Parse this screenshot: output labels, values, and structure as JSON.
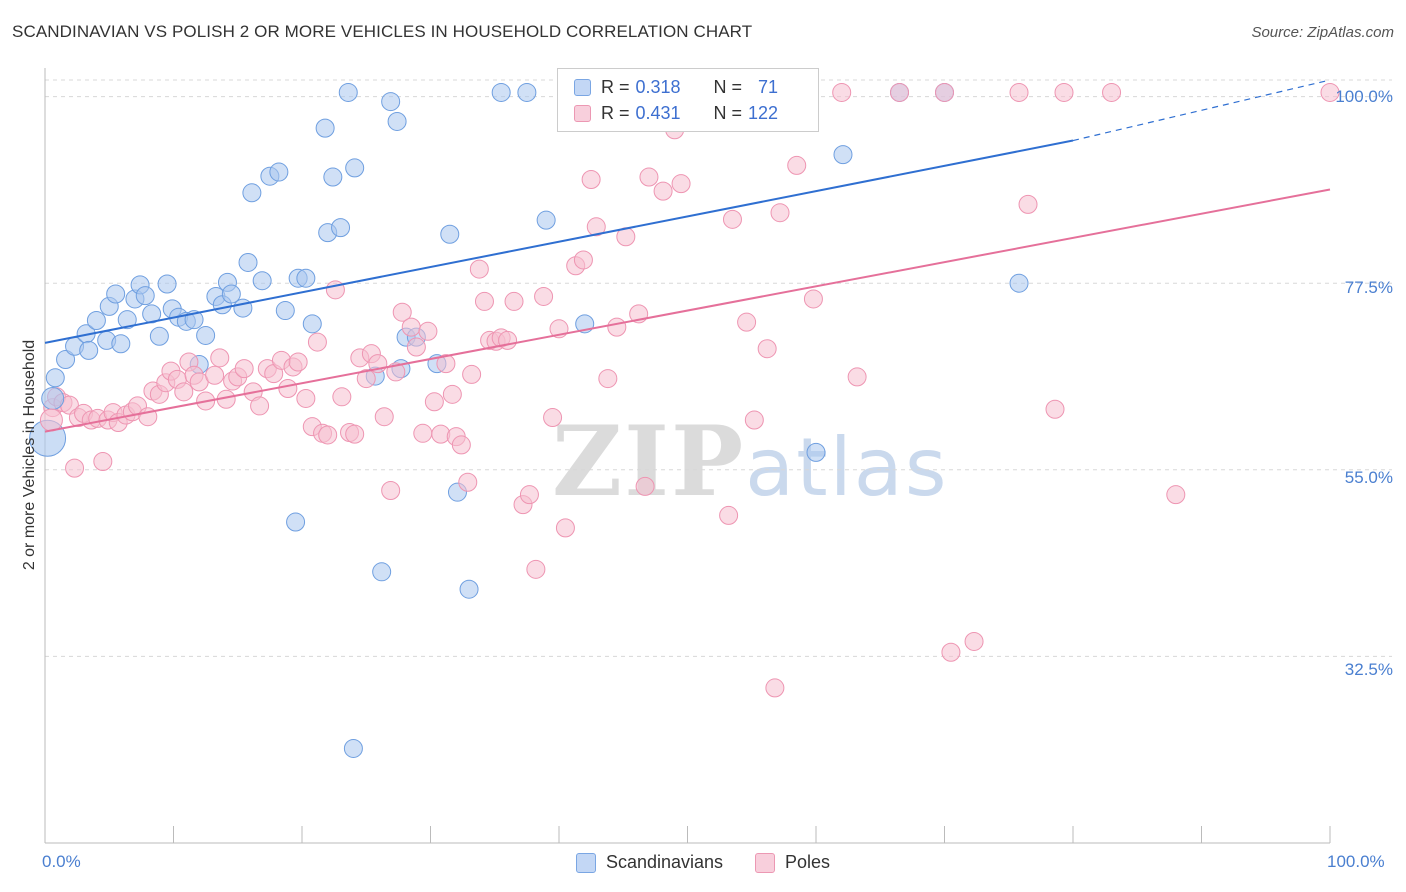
{
  "header": {
    "title": "SCANDINAVIAN VS POLISH 2 OR MORE VEHICLES IN HOUSEHOLD CORRELATION CHART",
    "source": "Source: ZipAtlas.com"
  },
  "watermark": {
    "zip": "ZIP",
    "atlas": "atlas"
  },
  "legend_top": {
    "rows": [
      {
        "r_label": "R = ",
        "r_value": "0.318",
        "n_label": "N = ",
        "n_value": "71"
      },
      {
        "r_label": "R = ",
        "r_value": "0.431",
        "n_label": "N = ",
        "n_value": "122"
      }
    ]
  },
  "legend_bottom": {
    "items": [
      "Scandinavians",
      "Poles"
    ]
  },
  "colors": {
    "blue_fill": "#a9c6ef",
    "blue_stroke": "#6f9fe0",
    "blue_line": "#2f6fd1",
    "pink_fill": "#f6bfd0",
    "pink_stroke": "#ee95b2",
    "pink_line": "#e5709a",
    "tick_text": "#4a7fd0",
    "grid": "#d8d8d8"
  },
  "chart_data": {
    "type": "scatter",
    "title": "SCANDINAVIAN VS POLISH 2 OR MORE VEHICLES IN HOUSEHOLD CORRELATION CHART",
    "xlabel": "",
    "ylabel": "2 or more Vehicles in Household",
    "xlim": [
      0,
      100
    ],
    "ylim": [
      10,
      102
    ],
    "x_tick_labels": [
      "0.0%",
      "100.0%"
    ],
    "y_ticks": [
      32.5,
      55.0,
      77.5,
      100.0
    ],
    "y_tick_labels": [
      "32.5%",
      "55.0%",
      "77.5%",
      "100.0%"
    ],
    "grid": true,
    "legend_position": "top-center",
    "series": [
      {
        "name": "Scandinavians",
        "R": 0.318,
        "N": 71,
        "trend": {
          "x": [
            0,
            80
          ],
          "y": [
            70.3,
            94.7
          ],
          "dashed_to": [
            100,
            102
          ]
        },
        "points": [
          [
            0.8,
            66.1
          ],
          [
            1.6,
            68.3
          ],
          [
            2.3,
            69.9
          ],
          [
            3.2,
            71.4
          ],
          [
            3.4,
            69.4
          ],
          [
            4.0,
            73.0
          ],
          [
            4.8,
            70.6
          ],
          [
            5.0,
            74.7
          ],
          [
            5.5,
            76.2
          ],
          [
            5.9,
            70.2
          ],
          [
            6.4,
            73.1
          ],
          [
            7.0,
            75.6
          ],
          [
            7.4,
            77.3
          ],
          [
            7.8,
            76.0
          ],
          [
            8.3,
            73.8
          ],
          [
            8.9,
            71.1
          ],
          [
            9.5,
            77.4
          ],
          [
            9.9,
            74.4
          ],
          [
            10.4,
            73.4
          ],
          [
            11.0,
            72.9
          ],
          [
            11.6,
            73.1
          ],
          [
            12.0,
            67.7
          ],
          [
            12.5,
            71.2
          ],
          [
            13.3,
            75.9
          ],
          [
            13.8,
            74.9
          ],
          [
            14.2,
            77.6
          ],
          [
            14.5,
            76.2
          ],
          [
            15.4,
            74.5
          ],
          [
            15.8,
            80.0
          ],
          [
            16.1,
            88.4
          ],
          [
            16.9,
            77.8
          ],
          [
            17.5,
            90.4
          ],
          [
            18.2,
            90.9
          ],
          [
            18.7,
            74.2
          ],
          [
            19.5,
            48.7
          ],
          [
            19.7,
            78.1
          ],
          [
            20.3,
            78.1
          ],
          [
            20.8,
            72.6
          ],
          [
            21.8,
            96.2
          ],
          [
            22.0,
            83.6
          ],
          [
            22.4,
            90.3
          ],
          [
            23.0,
            84.2
          ],
          [
            23.6,
            100.5
          ],
          [
            24.1,
            91.4
          ],
          [
            25.7,
            66.3
          ],
          [
            26.2,
            42.7
          ],
          [
            26.9,
            99.4
          ],
          [
            27.4,
            97.0
          ],
          [
            27.7,
            67.2
          ],
          [
            28.1,
            71.0
          ],
          [
            28.9,
            71.0
          ],
          [
            30.5,
            67.8
          ],
          [
            31.5,
            83.4
          ],
          [
            32.1,
            52.3
          ],
          [
            33.0,
            40.6
          ],
          [
            35.5,
            100.5
          ],
          [
            37.5,
            100.5
          ],
          [
            39.0,
            85.1
          ],
          [
            42.0,
            72.6
          ],
          [
            43.0,
            100.5
          ],
          [
            49.3,
            100.5
          ],
          [
            51.5,
            100.5
          ],
          [
            52.0,
            100.5
          ],
          [
            52.8,
            100.5
          ],
          [
            52.8,
            100.5
          ],
          [
            52.8,
            100.5
          ],
          [
            52.8,
            100.5
          ],
          [
            52.8,
            100.5
          ],
          [
            52.8,
            100.5
          ],
          [
            52.8,
            100.5
          ],
          [
            52.8,
            100.5
          ],
          [
            60.0,
            57.1
          ],
          [
            62.1,
            93.0
          ],
          [
            66.5,
            100.5
          ],
          [
            70.0,
            100.5
          ],
          [
            75.8,
            77.5
          ],
          [
            24.0,
            21.4
          ]
        ]
      },
      {
        "name": "Poles",
        "R": 0.431,
        "N": 122,
        "trend": {
          "x": [
            0,
            100
          ],
          "y": [
            59.6,
            88.8
          ]
        },
        "points": [
          [
            0.6,
            62.5
          ],
          [
            0.9,
            63.8
          ],
          [
            1.4,
            63.1
          ],
          [
            1.9,
            62.8
          ],
          [
            2.3,
            55.2
          ],
          [
            2.6,
            61.3
          ],
          [
            3.0,
            61.8
          ],
          [
            3.6,
            61.0
          ],
          [
            4.1,
            61.2
          ],
          [
            4.5,
            56.0
          ],
          [
            4.9,
            61.0
          ],
          [
            5.3,
            61.9
          ],
          [
            5.7,
            60.7
          ],
          [
            6.3,
            61.6
          ],
          [
            6.8,
            62.0
          ],
          [
            7.2,
            62.7
          ],
          [
            8.0,
            61.4
          ],
          [
            8.4,
            64.5
          ],
          [
            8.9,
            64.1
          ],
          [
            9.4,
            65.5
          ],
          [
            9.8,
            66.9
          ],
          [
            10.3,
            65.9
          ],
          [
            10.8,
            64.4
          ],
          [
            11.2,
            68.0
          ],
          [
            11.6,
            66.4
          ],
          [
            12.0,
            65.6
          ],
          [
            12.5,
            63.3
          ],
          [
            13.2,
            66.4
          ],
          [
            13.6,
            68.5
          ],
          [
            14.1,
            63.5
          ],
          [
            14.6,
            65.7
          ],
          [
            15.0,
            66.2
          ],
          [
            15.5,
            67.2
          ],
          [
            16.2,
            64.4
          ],
          [
            16.7,
            62.7
          ],
          [
            17.3,
            67.2
          ],
          [
            17.8,
            66.6
          ],
          [
            18.4,
            68.2
          ],
          [
            18.9,
            64.8
          ],
          [
            19.3,
            67.4
          ],
          [
            19.7,
            68.0
          ],
          [
            20.3,
            63.6
          ],
          [
            20.8,
            60.2
          ],
          [
            21.2,
            70.4
          ],
          [
            21.6,
            59.4
          ],
          [
            22.0,
            59.2
          ],
          [
            22.6,
            76.7
          ],
          [
            23.1,
            63.8
          ],
          [
            23.7,
            59.5
          ],
          [
            24.1,
            59.3
          ],
          [
            24.5,
            68.5
          ],
          [
            25.0,
            66.0
          ],
          [
            25.4,
            69.0
          ],
          [
            25.9,
            67.8
          ],
          [
            26.4,
            61.4
          ],
          [
            26.9,
            52.5
          ],
          [
            27.3,
            66.8
          ],
          [
            27.8,
            74.0
          ],
          [
            28.5,
            72.2
          ],
          [
            28.9,
            69.8
          ],
          [
            29.4,
            59.4
          ],
          [
            29.8,
            71.7
          ],
          [
            30.3,
            63.2
          ],
          [
            30.8,
            59.3
          ],
          [
            31.2,
            67.8
          ],
          [
            31.7,
            64.1
          ],
          [
            32.0,
            59.0
          ],
          [
            32.4,
            58.0
          ],
          [
            32.9,
            53.5
          ],
          [
            33.2,
            66.5
          ],
          [
            33.8,
            79.2
          ],
          [
            34.2,
            75.3
          ],
          [
            34.6,
            70.6
          ],
          [
            35.1,
            70.5
          ],
          [
            35.5,
            70.9
          ],
          [
            36.0,
            70.6
          ],
          [
            36.5,
            75.3
          ],
          [
            37.2,
            50.8
          ],
          [
            37.7,
            52.0
          ],
          [
            38.2,
            43.0
          ],
          [
            38.8,
            75.9
          ],
          [
            39.5,
            61.3
          ],
          [
            40.0,
            72.0
          ],
          [
            40.5,
            48.0
          ],
          [
            41.3,
            79.6
          ],
          [
            41.9,
            80.3
          ],
          [
            42.5,
            90.0
          ],
          [
            42.9,
            84.3
          ],
          [
            43.8,
            66.0
          ],
          [
            44.5,
            72.2
          ],
          [
            45.2,
            83.1
          ],
          [
            46.2,
            73.8
          ],
          [
            46.7,
            53.0
          ],
          [
            47.0,
            90.3
          ],
          [
            48.1,
            88.6
          ],
          [
            48.6,
            100.5
          ],
          [
            49.0,
            96.0
          ],
          [
            49.5,
            89.5
          ],
          [
            50.5,
            100.5
          ],
          [
            50.9,
            100.5
          ],
          [
            51.3,
            100.5
          ],
          [
            51.7,
            100.5
          ],
          [
            53.2,
            49.5
          ],
          [
            53.5,
            85.2
          ],
          [
            54.6,
            72.8
          ],
          [
            55.2,
            61.0
          ],
          [
            55.6,
            100.5
          ],
          [
            56.2,
            69.6
          ],
          [
            56.8,
            28.7
          ],
          [
            57.2,
            86.0
          ],
          [
            58.5,
            91.7
          ],
          [
            59.8,
            75.6
          ],
          [
            62.0,
            100.5
          ],
          [
            63.2,
            66.2
          ],
          [
            66.5,
            100.5
          ],
          [
            70.0,
            100.5
          ],
          [
            70.5,
            33.0
          ],
          [
            72.3,
            34.3
          ],
          [
            75.8,
            100.5
          ],
          [
            76.5,
            87.0
          ],
          [
            78.6,
            62.3
          ],
          [
            79.3,
            100.5
          ],
          [
            83.0,
            100.5
          ],
          [
            88.0,
            52.0
          ],
          [
            100.0,
            100.5
          ]
        ]
      }
    ],
    "large_points": [
      {
        "series": "Scandinavians",
        "x": 0.6,
        "y": 63.6
      },
      {
        "series": "Scandinavians",
        "x": 0.2,
        "y": 58.8
      },
      {
        "series": "Poles",
        "x": 0.5,
        "y": 61.0
      }
    ]
  }
}
